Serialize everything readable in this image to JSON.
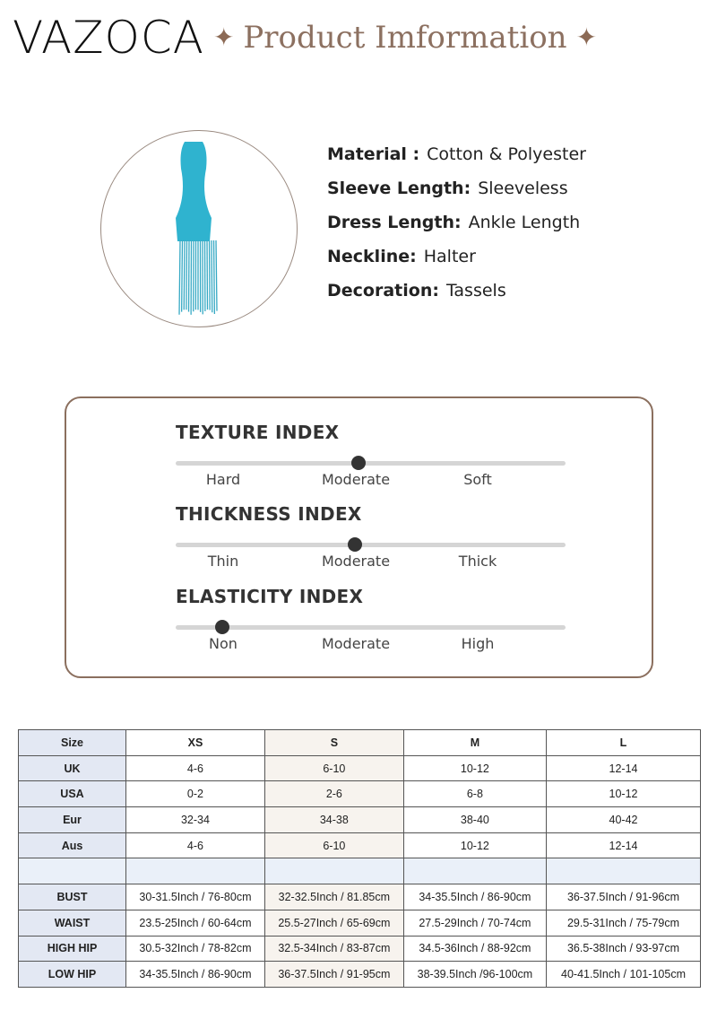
{
  "brand": "VAZOCA",
  "header": {
    "title": "Product Imformation",
    "star_icon": "sparkle-icon",
    "accent": "#8c7060"
  },
  "product": {
    "image": "turquoise halter tassel maxi dress",
    "specs": [
      {
        "label": "Material :",
        "value": "Cotton & Polyester"
      },
      {
        "label": "Sleeve Length:",
        "value": "Sleeveless"
      },
      {
        "label": "Dress Length:",
        "value": "Ankle Length"
      },
      {
        "label": "Neckline:",
        "value": "Halter"
      },
      {
        "label": "Decoration:",
        "value": "Tassels"
      }
    ]
  },
  "indices": [
    {
      "title": "TEXTURE INDEX",
      "labels": [
        "Hard",
        "Moderate",
        "Soft"
      ],
      "level": 0.47
    },
    {
      "title": "THICKNESS INDEX",
      "labels": [
        "Thin",
        "Moderate",
        "Thick"
      ],
      "level": 0.46
    },
    {
      "title": "ELASTICITY INDEX",
      "labels": [
        "Non",
        "Moderate",
        "High"
      ],
      "level": 0.12
    }
  ],
  "size_table": {
    "header": [
      "Size",
      "XS",
      "S",
      "M",
      "L"
    ],
    "rows": [
      [
        "UK",
        "4-6",
        "6-10",
        "10-12",
        "12-14"
      ],
      [
        "USA",
        "0-2",
        "2-6",
        "6-8",
        "10-12"
      ],
      [
        "Eur",
        "32-34",
        "34-38",
        "38-40",
        "40-42"
      ],
      [
        "Aus",
        "4-6",
        "6-10",
        "10-12",
        "12-14"
      ],
      [
        "",
        "",
        "",
        "",
        ""
      ],
      [
        "BUST",
        "30-31.5Inch / 76-80cm",
        "32-32.5Inch / 81.85cm",
        "34-35.5Inch / 86-90cm",
        "36-37.5Inch / 91-96cm"
      ],
      [
        "WAIST",
        "23.5-25Inch / 60-64cm",
        "25.5-27Inch / 65-69cm",
        "27.5-29Inch / 70-74cm",
        "29.5-31Inch / 75-79cm"
      ],
      [
        "HIGH HIP",
        "30.5-32Inch / 78-82cm",
        "32.5-34Inch / 83-87cm",
        "34.5-36Inch / 88-92cm",
        "36.5-38Inch / 93-97cm"
      ],
      [
        "LOW HIP",
        "34-35.5Inch / 86-90cm",
        "36-37.5Inch / 91-95cm",
        "38-39.5Inch /96-100cm",
        "40-41.5Inch / 101-105cm"
      ]
    ]
  }
}
